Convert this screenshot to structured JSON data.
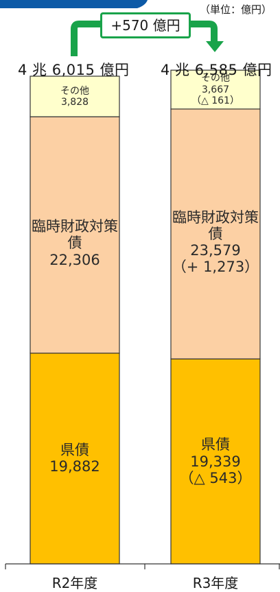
{
  "unit_label": "（単位：億円）",
  "difference_label": "+570 億円",
  "colors": {
    "その他": "#ffffcc",
    "臨時財政対策債": "#fcd0a4",
    "県債": "#ffc000",
    "arrow": "#19a34a",
    "header_band": "#0d5aa7"
  },
  "chart_data": {
    "type": "bar",
    "stacked": true,
    "categories": [
      "R2年度",
      "R3年度"
    ],
    "totals": [
      "4 兆 6,015 億円",
      "4 兆 6,585 億円"
    ],
    "series": [
      {
        "name": "県債",
        "values": [
          19882,
          19339
        ],
        "labels": [
          "県債\n19,882",
          "県債\n19,339\n（△ 543）"
        ]
      },
      {
        "name": "臨時財政対策債",
        "values": [
          22306,
          23579
        ],
        "labels": [
          "臨時財政対策債\n22,306",
          "臨時財政対策債\n23,579\n（+ 1,273）"
        ]
      },
      {
        "name": "その他",
        "values": [
          3828,
          3667
        ],
        "labels": [
          "その他\n3,828",
          "その他\n3,667\n（△ 161）"
        ]
      }
    ],
    "xlabel": "",
    "ylabel": "",
    "grid": false
  }
}
